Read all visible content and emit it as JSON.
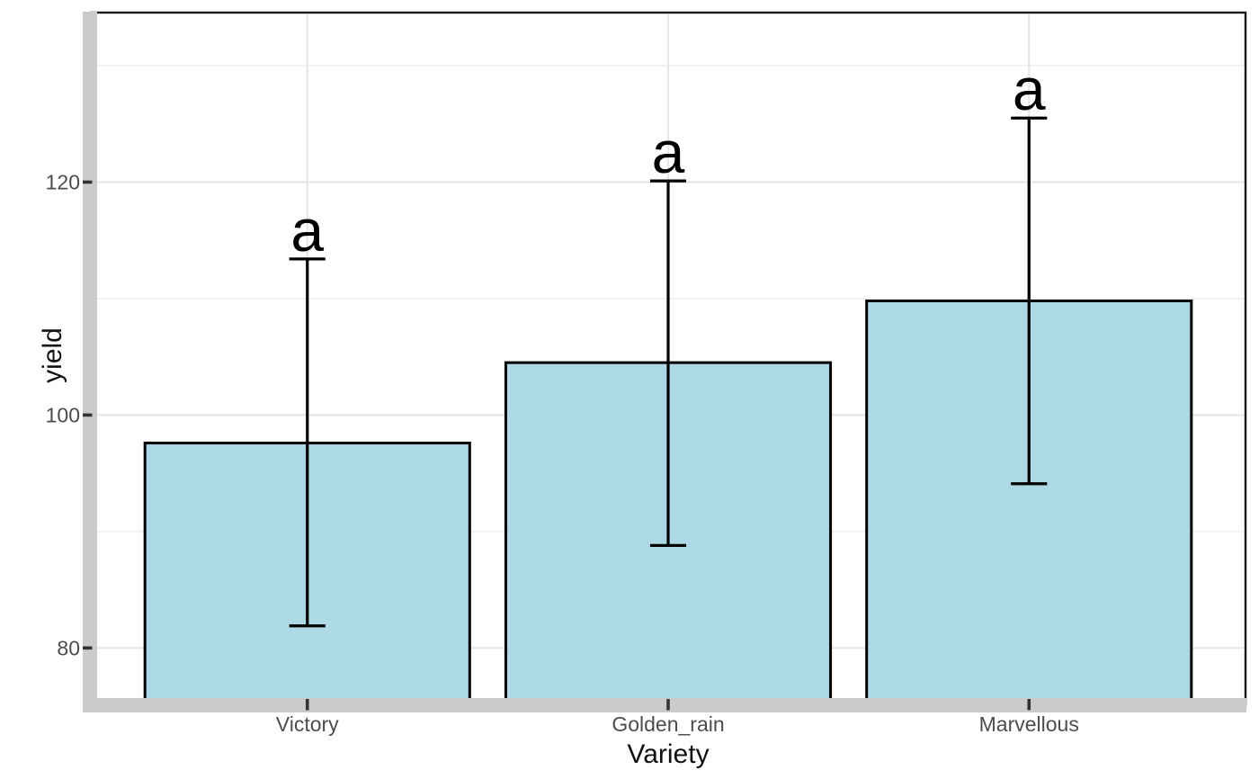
{
  "chart_data": {
    "type": "bar",
    "title": "",
    "xlabel": "Variety",
    "ylabel": "yield",
    "categories": [
      "Victory",
      "Golden_rain",
      "Marvellous"
    ],
    "values": [
      97.6,
      104.5,
      109.8
    ],
    "error_low": [
      81.9,
      88.8,
      94.1
    ],
    "error_high": [
      113.4,
      120.1,
      125.5
    ],
    "sig_labels": [
      "a",
      "a",
      "a"
    ],
    "yticks": [
      80,
      100,
      120
    ],
    "ytick_labels": [
      "80",
      "100",
      "120"
    ],
    "yticks_minor": [
      90,
      110,
      130
    ],
    "ylim": [
      75.7,
      134.4
    ],
    "bar_width_fraction": 0.9,
    "errorbar_cap_fraction": 0.1,
    "grid": true,
    "legend": false
  },
  "colors": {
    "figure_bg": "#ffffff",
    "panel_bg": "#ffffff",
    "panel_border": "#1a1a1a",
    "grid_major": "#e7e7e7",
    "grid_minor": "#f0f0f0",
    "axis_strip": "#cbcbcb",
    "tick_mark": "#333333",
    "tick_label": "#4d4d4d",
    "axis_title": "#111111",
    "bar_fill": "#ADD8E6",
    "bar_outline": "#000000",
    "errorbar": "#000000",
    "sig_label": "#000000"
  }
}
